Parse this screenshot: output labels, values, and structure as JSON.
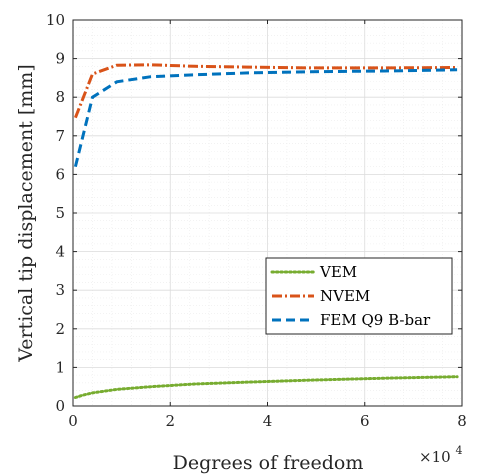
{
  "chart_data": {
    "type": "line",
    "title": "",
    "xlabel": "Degrees of freedom",
    "ylabel": "Vertical tip displacement [mm]",
    "x_multiplier_base": "×10",
    "x_multiplier_exp": "4",
    "xlim": [
      0,
      8
    ],
    "ylim": [
      0,
      10
    ],
    "x_ticks": [
      0,
      2,
      4,
      6,
      8
    ],
    "y_ticks": [
      0,
      1,
      2,
      3,
      4,
      5,
      6,
      7,
      8,
      9,
      10
    ],
    "grid": true,
    "legend_position": "bottom-right",
    "series": [
      {
        "name": "VEM",
        "color": "#77AC30",
        "dash": "dotted",
        "x": [
          0.05,
          0.2,
          0.4,
          0.9,
          1.6,
          2.5,
          3.6,
          4.9,
          6.4,
          7.9
        ],
        "y": [
          0.22,
          0.28,
          0.34,
          0.43,
          0.5,
          0.57,
          0.62,
          0.67,
          0.72,
          0.76
        ]
      },
      {
        "name": "NVEM",
        "color": "#D95319",
        "dash": "dashdot",
        "x": [
          0.05,
          0.4,
          0.9,
          1.6,
          2.5,
          3.6,
          4.9,
          6.4,
          7.9
        ],
        "y": [
          7.47,
          8.6,
          8.83,
          8.84,
          8.8,
          8.78,
          8.76,
          8.76,
          8.77
        ]
      },
      {
        "name": "FEM Q9 B-bar",
        "color": "#0072BD",
        "dash": "dashed",
        "x": [
          0.05,
          0.4,
          0.9,
          1.6,
          2.5,
          3.6,
          4.9,
          6.4,
          7.9
        ],
        "y": [
          6.2,
          8.0,
          8.4,
          8.53,
          8.58,
          8.63,
          8.66,
          8.68,
          8.71
        ]
      }
    ]
  }
}
